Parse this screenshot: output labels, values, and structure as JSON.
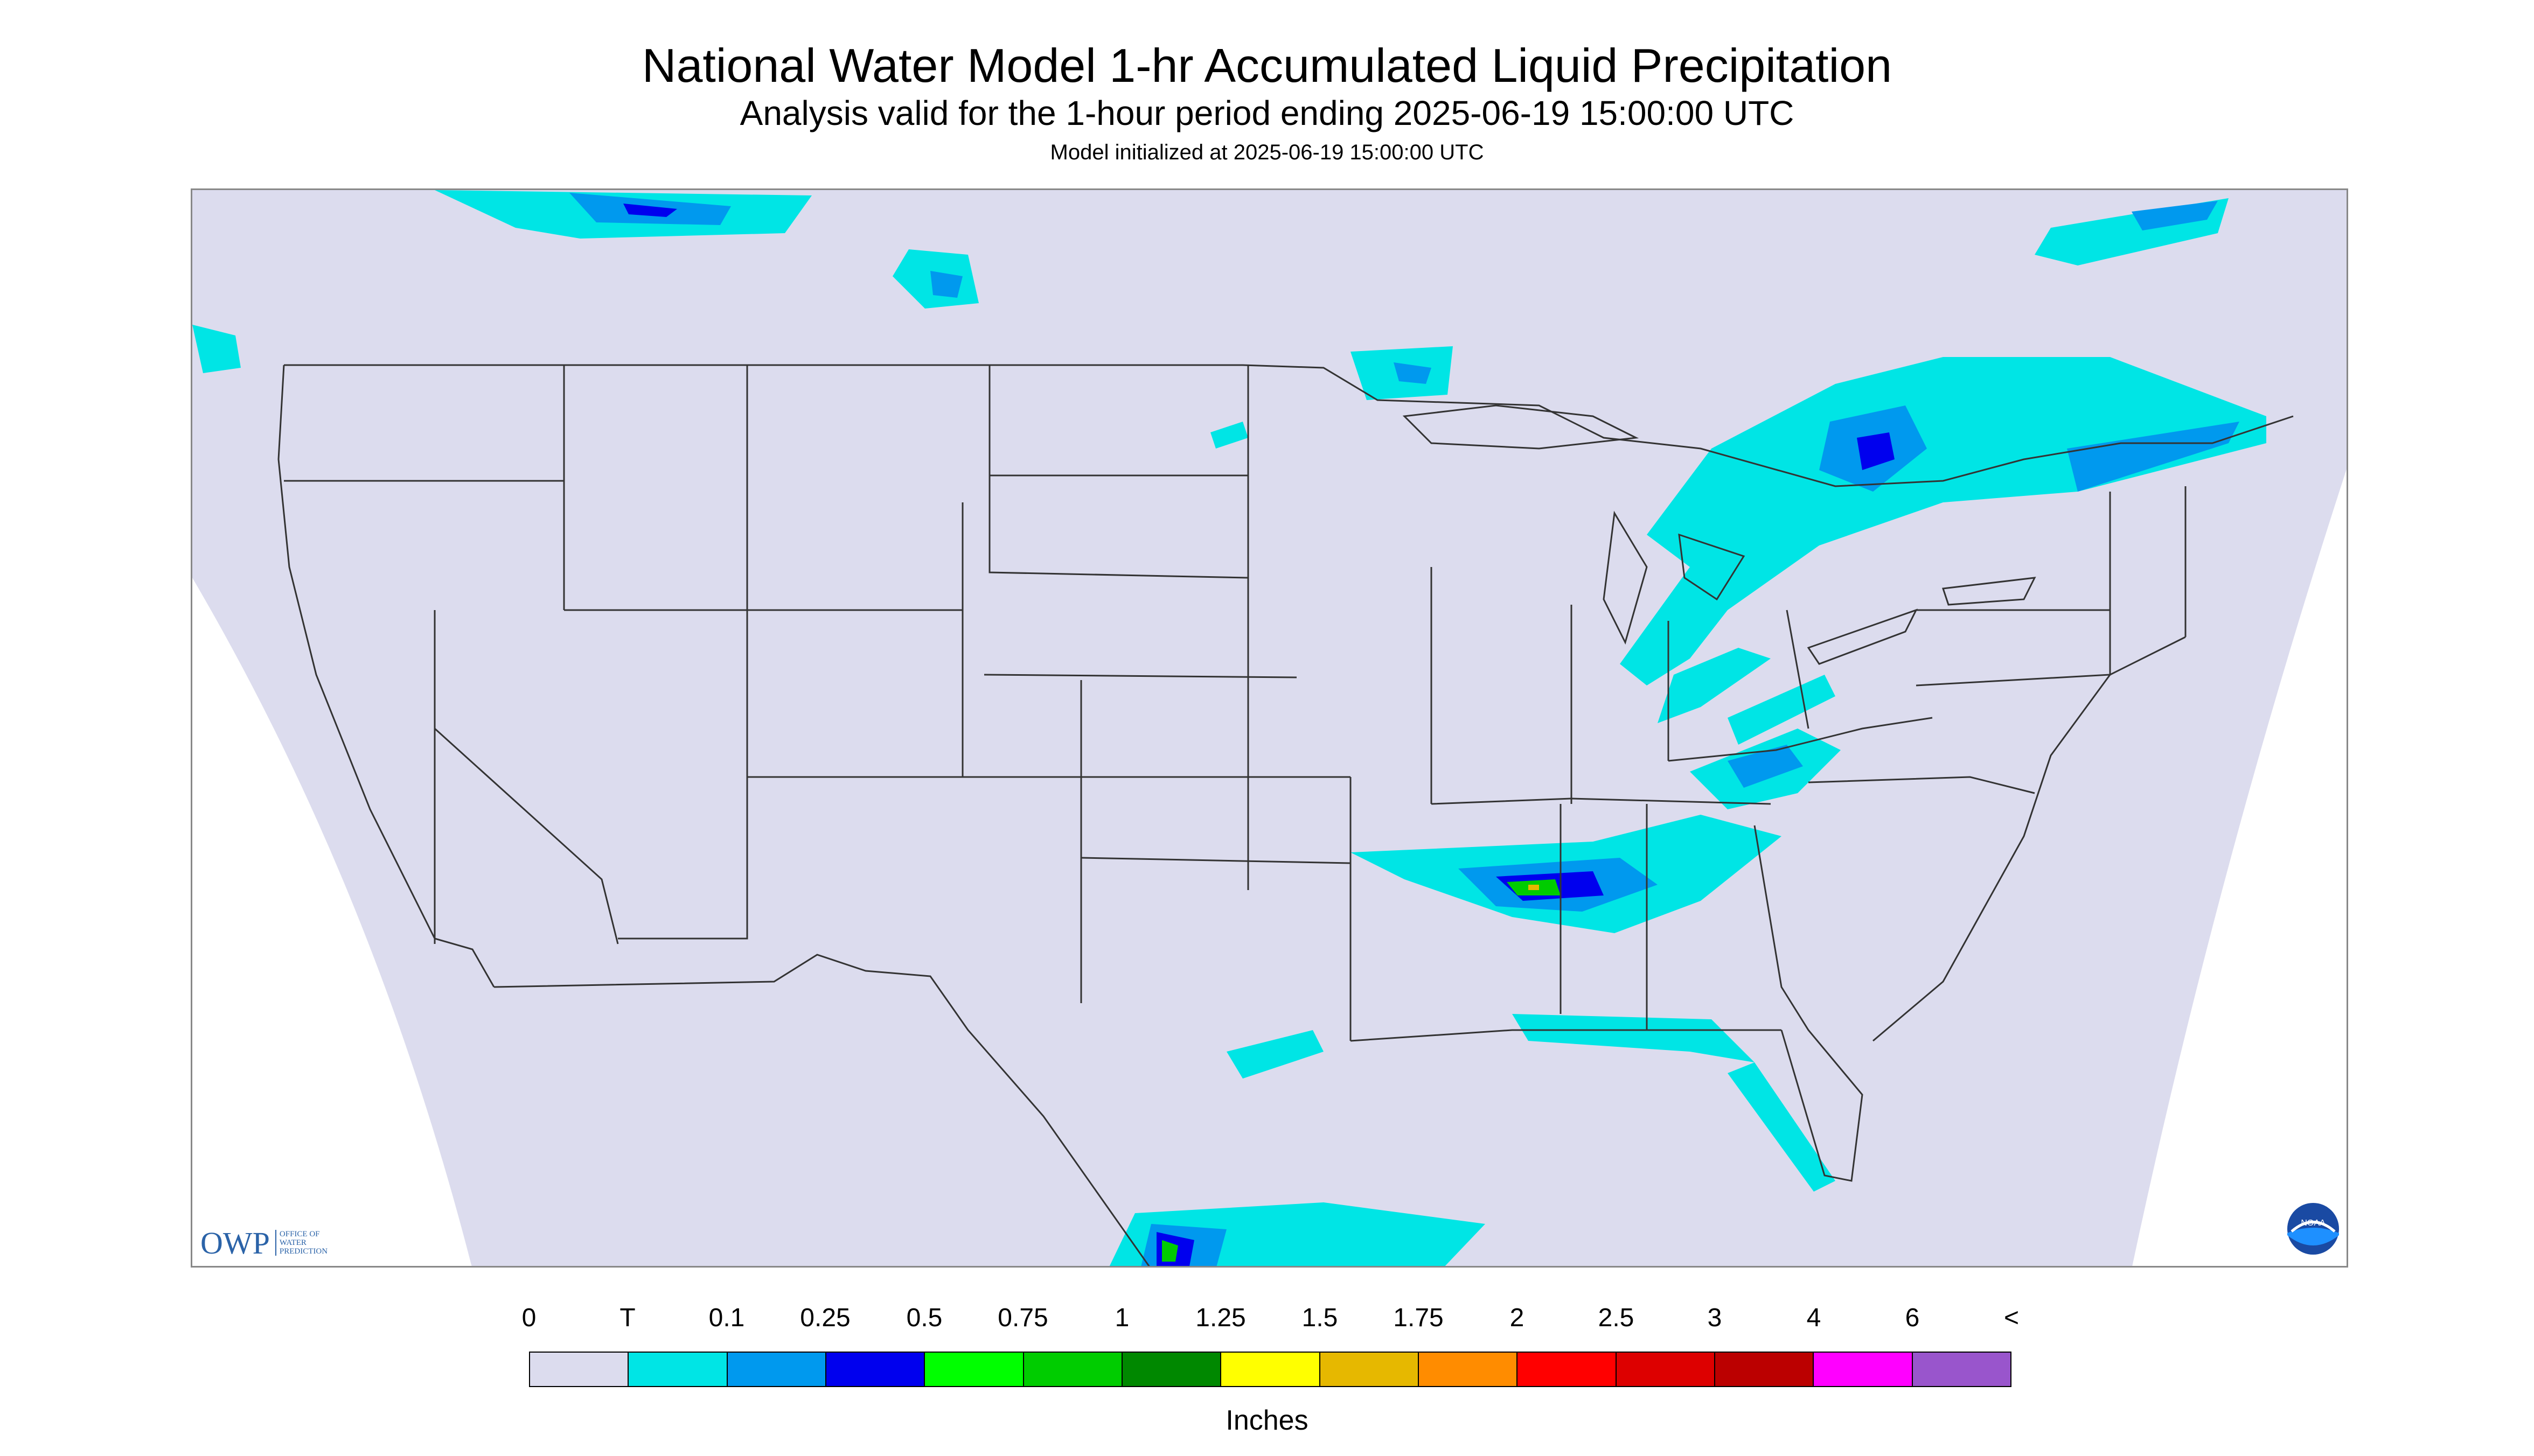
{
  "header": {
    "title": "National Water Model 1-hr Accumulated Liquid Precipitation",
    "subtitle": "Analysis valid for the 1-hour period ending 2025-06-19 15:00:00 UTC",
    "init": "Model initialized at 2025-06-19 15:00:00 UTC"
  },
  "map": {
    "background_color": "#dcdcee",
    "outside_domain_color": "#ffffff",
    "boundary_color": "#333333"
  },
  "logos": {
    "owp_main": "OWP",
    "owp_sub": [
      "Office of",
      "Water",
      "Prediction"
    ],
    "owp_icon": "owp-logo-icon",
    "noaa_text": "NOAA",
    "noaa_icon": "noaa-logo-icon"
  },
  "legend": {
    "unit": "Inches",
    "labels": [
      "0",
      "T",
      "0.1",
      "0.25",
      "0.5",
      "0.75",
      "1",
      "1.25",
      "1.5",
      "1.75",
      "2",
      "2.5",
      "3",
      "4",
      "6",
      "<"
    ],
    "colors": [
      "#dcdcee",
      "#00e5e5",
      "#0099ee",
      "#0000ee",
      "#00ff00",
      "#00cc00",
      "#008800",
      "#ffff00",
      "#e6b800",
      "#ff8c00",
      "#ff0000",
      "#dd0000",
      "#bb0000",
      "#ff00ff",
      "#9955cc"
    ]
  }
}
